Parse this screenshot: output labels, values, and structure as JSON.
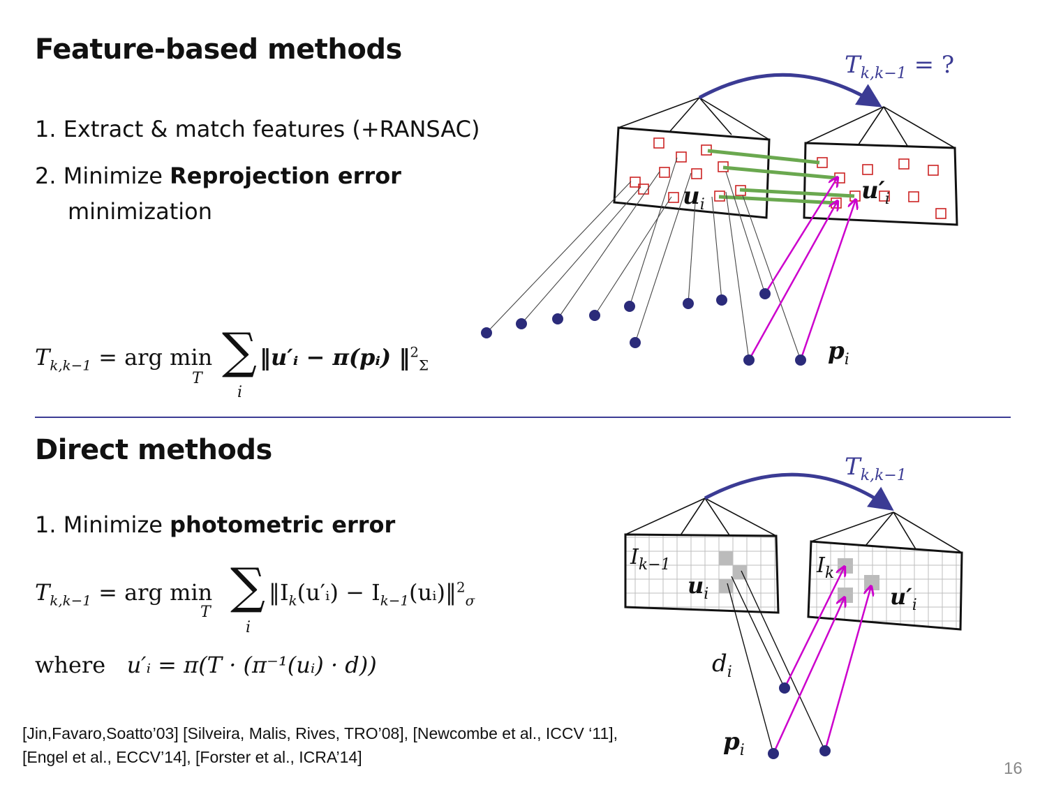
{
  "feature": {
    "title": "Feature-based methods",
    "step1": "1. Extract & match features (+RANSAC)",
    "step2_prefix": "2. Minimize ",
    "step2_bold": "Reprojection error",
    "step2_cont": "minimization",
    "eq_lhs": "T",
    "eq_lhs_sub": "k,k−1",
    "eq_eq": " = arg min",
    "eq_under": "T",
    "eq_sum_under": "i",
    "eq_body": "‖u′ᵢ − π(pᵢ) ‖",
    "eq_sup": "2",
    "eq_sub": "Σ",
    "diagram": {
      "transform_label": "T",
      "transform_sub": "k,k−1",
      "transform_q": " = ?",
      "label_u": "u",
      "label_u_sub": "i",
      "label_uprime": "u′",
      "label_uprime_sub": "i",
      "label_p": "p",
      "label_p_sub": "i"
    }
  },
  "direct": {
    "title": "Direct methods",
    "step1_prefix": "1. Minimize ",
    "step1_bold": "photometric error",
    "eq_lhs": "T",
    "eq_lhs_sub": "k,k−1",
    "eq_eq": " =  arg min",
    "eq_under": "T",
    "eq_sum_under": "i",
    "eq_body": "‖I",
    "eq_body_k": "k",
    "eq_body2": "(u′ᵢ) − I",
    "eq_body_k1": "k−1",
    "eq_body3": "(uᵢ)‖",
    "eq_sup": "2",
    "eq_sub": "σ",
    "where_word": "where",
    "where_eq": "u′ᵢ = π(T  · (π⁻¹(uᵢ) · d))",
    "diagram": {
      "transform_label": "T",
      "transform_sub": "k,k−1",
      "label_Ik1": "I",
      "label_Ik1_sub": "k−1",
      "label_Ik": "I",
      "label_Ik_sub": "k",
      "label_u": "u",
      "label_u_sub": "i",
      "label_uprime": "u′",
      "label_uprime_sub": "i",
      "label_d": "d",
      "label_d_sub": "i",
      "label_p": "p",
      "label_p_sub": "i"
    }
  },
  "references": {
    "line1": "[Jin,Favaro,Soatto’03] [Silveira, Malis, Rives, TRO’08], [Newcombe et al., ICCV ‘11],",
    "line2": "[Engel et al., ECCV’14], [Forster et al., ICRA’14]"
  },
  "page_number": "16",
  "colors": {
    "accent": "#3b3b94",
    "match_lines": "#6aa84f",
    "projection_arrows": "#cc00cc",
    "feature_boxes": "#cc2222",
    "points": "#2b2b7a",
    "grid_highlight": "#bbbbbb"
  }
}
